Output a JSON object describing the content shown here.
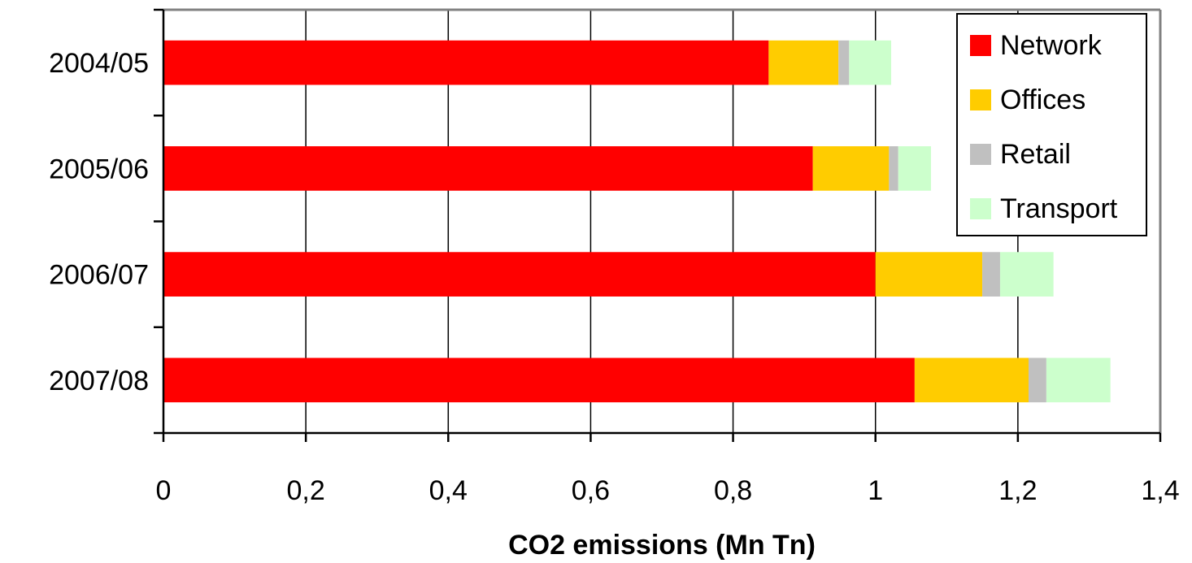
{
  "chart_data": {
    "type": "bar",
    "orientation": "horizontal",
    "stacked": true,
    "title": "",
    "xlabel": "CO2 emissions (Mn Tn)",
    "ylabel": "",
    "categories": [
      "2004/05",
      "2005/06",
      "2006/07",
      "2007/08"
    ],
    "series": [
      {
        "name": "Network",
        "color": "#ff0000",
        "values": [
          0.85,
          0.912,
          1.0,
          1.055
        ]
      },
      {
        "name": "Offices",
        "color": "#ffcc00",
        "values": [
          0.098,
          0.107,
          0.15,
          0.16
        ]
      },
      {
        "name": "Retail",
        "color": "#c0c0c0",
        "values": [
          0.015,
          0.013,
          0.025,
          0.025
        ]
      },
      {
        "name": "Transport",
        "color": "#ccffcc",
        "values": [
          0.059,
          0.046,
          0.075,
          0.09
        ]
      }
    ],
    "xlim": [
      0,
      1.4
    ],
    "xticks": [
      0,
      0.2,
      0.4,
      0.6,
      0.8,
      1.0,
      1.2,
      1.4
    ],
    "xtick_labels": [
      "0",
      "0,2",
      "0,4",
      "0,6",
      "0,8",
      "1",
      "1,2",
      "1,4"
    ],
    "grid": "vertical",
    "legend_position": "top-right"
  }
}
